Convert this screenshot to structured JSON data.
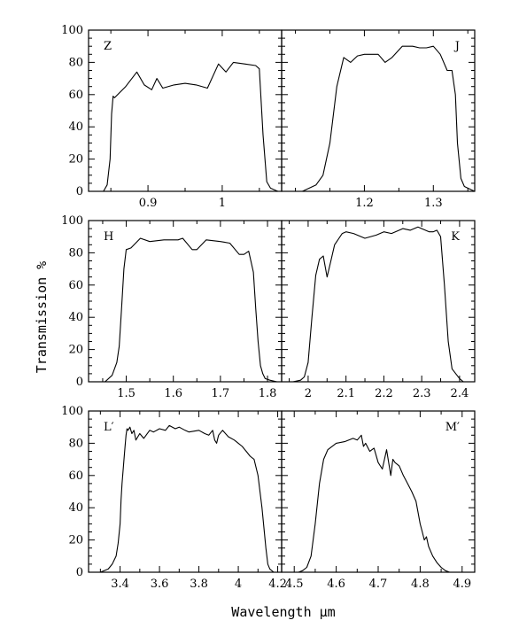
{
  "chart_data": {
    "type": "line",
    "xlabel": "Wavelength μm",
    "ylabel": "Transmission %",
    "grid": false,
    "legend": "none",
    "ylim": [
      0,
      100
    ],
    "yticks": [
      "0",
      "20",
      "40",
      "60",
      "80",
      "100"
    ],
    "panels": [
      {
        "id": "Z",
        "label": "Z",
        "xlim": [
          0.82,
          1.08
        ],
        "xticks": [
          {
            "v": 0.9,
            "t": "0.9"
          },
          {
            "v": 1.0,
            "t": "1"
          }
        ],
        "minor": [
          0.85,
          0.95,
          1.05
        ],
        "x": [
          0.84,
          0.845,
          0.849,
          0.851,
          0.853,
          0.855,
          0.87,
          0.885,
          0.895,
          0.905,
          0.912,
          0.92,
          0.935,
          0.95,
          0.965,
          0.98,
          0.995,
          1.005,
          1.015,
          1.03,
          1.045,
          1.05,
          1.055,
          1.06,
          1.065,
          1.07,
          1.075
        ],
        "y": [
          0,
          4,
          20,
          48,
          59,
          58,
          65,
          74,
          66,
          63,
          70,
          64,
          66,
          67,
          66,
          64,
          79,
          74,
          80,
          79,
          78,
          76,
          35,
          6,
          2,
          1,
          0
        ]
      },
      {
        "id": "J",
        "label": "J",
        "xlim": [
          1.08,
          1.36
        ],
        "xticks": [
          {
            "v": 1.2,
            "t": "1.2"
          },
          {
            "v": 1.3,
            "t": "1.3"
          }
        ],
        "minor": [
          1.1,
          1.15,
          1.25,
          1.35
        ],
        "x": [
          1.1,
          1.11,
          1.13,
          1.14,
          1.15,
          1.16,
          1.17,
          1.18,
          1.19,
          1.2,
          1.22,
          1.23,
          1.24,
          1.255,
          1.27,
          1.28,
          1.29,
          1.3,
          1.31,
          1.32,
          1.327,
          1.332,
          1.335,
          1.34,
          1.345,
          1.35,
          1.355,
          1.36
        ],
        "y": [
          0,
          0,
          4,
          10,
          30,
          65,
          83,
          80,
          84,
          85,
          85,
          80,
          83,
          90,
          90,
          89,
          89,
          90,
          85,
          75,
          75,
          60,
          30,
          8,
          3,
          2,
          1,
          0
        ]
      },
      {
        "id": "H",
        "label": "H",
        "xlim": [
          1.42,
          1.83
        ],
        "xticks": [
          {
            "v": 1.5,
            "t": "1.5"
          },
          {
            "v": 1.6,
            "t": "1.6"
          },
          {
            "v": 1.7,
            "t": "1.7"
          },
          {
            "v": 1.8,
            "t": "1.8"
          }
        ],
        "minor": [
          1.45,
          1.55,
          1.65,
          1.75
        ],
        "x": [
          1.455,
          1.47,
          1.48,
          1.485,
          1.49,
          1.495,
          1.5,
          1.51,
          1.53,
          1.55,
          1.58,
          1.61,
          1.62,
          1.64,
          1.65,
          1.67,
          1.7,
          1.72,
          1.74,
          1.75,
          1.76,
          1.77,
          1.775,
          1.78,
          1.785,
          1.79,
          1.795,
          1.805,
          1.82
        ],
        "y": [
          0,
          4,
          12,
          22,
          45,
          70,
          82,
          83,
          89,
          87,
          88,
          88,
          89,
          82,
          82,
          88,
          87,
          86,
          79,
          79,
          81,
          68,
          45,
          25,
          10,
          5,
          2,
          1,
          0
        ]
      },
      {
        "id": "K",
        "label": "K",
        "xlim": [
          1.93,
          2.44
        ],
        "xticks": [
          {
            "v": 2.0,
            "t": "2"
          },
          {
            "v": 2.1,
            "t": "2.1"
          },
          {
            "v": 2.2,
            "t": "2.2"
          },
          {
            "v": 2.3,
            "t": "2.3"
          },
          {
            "v": 2.4,
            "t": "2.4"
          }
        ],
        "minor": [
          1.95,
          2.05,
          2.15,
          2.25,
          2.35
        ],
        "x": [
          1.95,
          1.96,
          1.98,
          1.99,
          2.0,
          2.01,
          2.02,
          2.03,
          2.04,
          2.05,
          2.06,
          2.07,
          2.09,
          2.1,
          2.12,
          2.15,
          2.18,
          2.2,
          2.22,
          2.25,
          2.27,
          2.29,
          2.3,
          2.32,
          2.33,
          2.34,
          2.35,
          2.36,
          2.37,
          2.38,
          2.4,
          2.41
        ],
        "y": [
          0,
          0,
          1,
          3,
          12,
          40,
          66,
          76,
          78,
          65,
          75,
          85,
          92,
          93,
          92,
          89,
          91,
          93,
          92,
          95,
          94,
          96,
          95,
          93,
          93,
          94,
          90,
          60,
          25,
          8,
          2,
          0
        ]
      },
      {
        "id": "L",
        "label": "L′",
        "xlim": [
          3.24,
          4.22
        ],
        "xticks": [
          {
            "v": 3.4,
            "t": "3.4"
          },
          {
            "v": 3.6,
            "t": "3.6"
          },
          {
            "v": 3.8,
            "t": "3.8"
          },
          {
            "v": 4.0,
            "t": "4"
          },
          {
            "v": 4.2,
            "t": "4.2"
          }
        ],
        "minor": [
          3.3,
          3.5,
          3.7,
          3.9,
          4.1
        ],
        "x": [
          3.3,
          3.34,
          3.36,
          3.38,
          3.39,
          3.4,
          3.405,
          3.41,
          3.42,
          3.425,
          3.43,
          3.435,
          3.44,
          3.45,
          3.46,
          3.47,
          3.48,
          3.5,
          3.52,
          3.55,
          3.57,
          3.6,
          3.63,
          3.65,
          3.68,
          3.7,
          3.73,
          3.75,
          3.8,
          3.83,
          3.85,
          3.87,
          3.88,
          3.89,
          3.9,
          3.92,
          3.95,
          3.98,
          4.0,
          4.02,
          4.04,
          4.06,
          4.08,
          4.1,
          4.12,
          4.14,
          4.15,
          4.16,
          4.18,
          4.2
        ],
        "y": [
          0,
          2,
          5,
          10,
          18,
          30,
          45,
          55,
          70,
          78,
          85,
          89,
          88,
          90,
          86,
          88,
          82,
          86,
          83,
          88,
          87,
          89,
          88,
          91,
          89,
          90,
          88,
          87,
          88,
          86,
          85,
          88,
          82,
          80,
          85,
          88,
          84,
          82,
          80,
          78,
          75,
          72,
          70,
          60,
          40,
          15,
          5,
          2,
          0,
          0
        ]
      },
      {
        "id": "M",
        "label": "M′",
        "xlim": [
          4.47,
          4.93
        ],
        "xticks": [
          {
            "v": 4.5,
            "t": "4.5"
          },
          {
            "v": 4.6,
            "t": "4.6"
          },
          {
            "v": 4.7,
            "t": "4.7"
          },
          {
            "v": 4.8,
            "t": "4.8"
          },
          {
            "v": 4.9,
            "t": "4.9"
          }
        ],
        "minor": [
          4.55,
          4.65,
          4.75,
          4.85
        ],
        "x": [
          4.49,
          4.51,
          4.52,
          4.53,
          4.54,
          4.55,
          4.56,
          4.57,
          4.58,
          4.6,
          4.62,
          4.64,
          4.65,
          4.66,
          4.665,
          4.67,
          4.68,
          4.69,
          4.7,
          4.71,
          4.72,
          4.73,
          4.735,
          4.74,
          4.75,
          4.76,
          4.77,
          4.78,
          4.79,
          4.8,
          4.805,
          4.81,
          4.815,
          4.82,
          4.83,
          4.84,
          4.85,
          4.86,
          4.87
        ],
        "y": [
          0,
          0,
          1,
          3,
          10,
          30,
          55,
          70,
          76,
          80,
          81,
          83,
          82,
          85,
          78,
          80,
          75,
          77,
          68,
          64,
          76,
          60,
          70,
          68,
          66,
          60,
          55,
          50,
          44,
          30,
          25,
          20,
          22,
          16,
          10,
          6,
          3,
          1,
          0
        ]
      }
    ]
  }
}
